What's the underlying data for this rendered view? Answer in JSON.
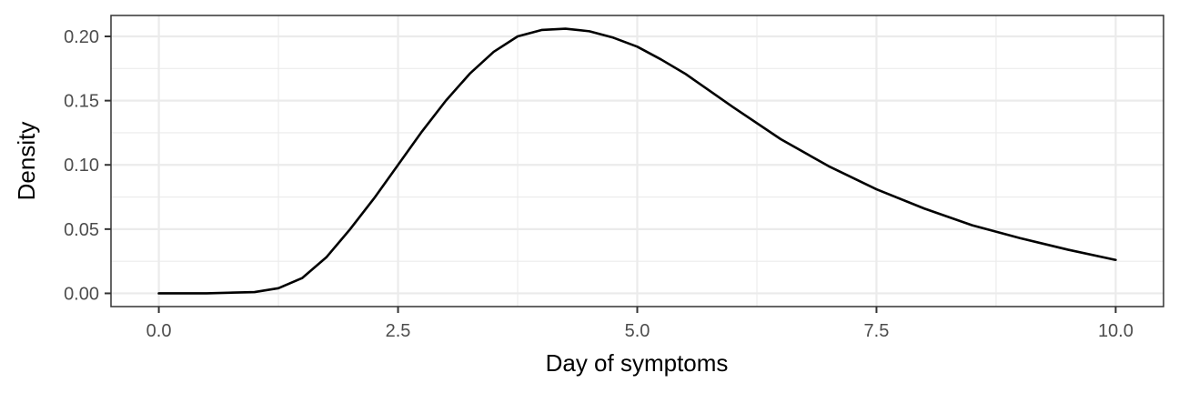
{
  "chart_data": {
    "type": "line",
    "title": "",
    "xlabel": "Day of symptoms",
    "ylabel": "Density",
    "xlim": [
      -0.5,
      10.5
    ],
    "ylim": [
      -0.0103,
      0.2163
    ],
    "x_ticks": [
      0,
      2.5,
      5,
      7.5,
      10
    ],
    "x_tick_labels": [
      "0.0",
      "2.5",
      "5.0",
      "7.5",
      "10.0"
    ],
    "x_minor_ticks": [
      1.25,
      3.75,
      6.25,
      8.75
    ],
    "y_ticks": [
      0,
      0.05,
      0.1,
      0.15,
      0.2
    ],
    "y_tick_labels": [
      "0.00",
      "0.05",
      "0.10",
      "0.15",
      "0.20"
    ],
    "y_minor_ticks": [
      0.025,
      0.075,
      0.125,
      0.175
    ],
    "grid": true,
    "colors": {
      "line": "#000000",
      "grid": "#ebebeb",
      "background": "#ffffff",
      "border": "#333333"
    },
    "series": [
      {
        "x": [
          0,
          0.5,
          1,
          1.25,
          1.5,
          1.75,
          2,
          2.25,
          2.5,
          2.75,
          3,
          3.25,
          3.5,
          3.75,
          4,
          4.25,
          4.5,
          4.75,
          5,
          5.25,
          5.5,
          5.75,
          6,
          6.5,
          7,
          7.5,
          8,
          8.5,
          9,
          9.5,
          10
        ],
        "values": [
          0.0,
          0.0,
          0.001,
          0.004,
          0.012,
          0.028,
          0.05,
          0.074,
          0.1,
          0.126,
          0.15,
          0.171,
          0.188,
          0.2,
          0.205,
          0.206,
          0.204,
          0.199,
          0.192,
          0.182,
          0.171,
          0.158,
          0.145,
          0.12,
          0.099,
          0.081,
          0.066,
          0.053,
          0.043,
          0.034,
          0.026
        ]
      }
    ]
  }
}
